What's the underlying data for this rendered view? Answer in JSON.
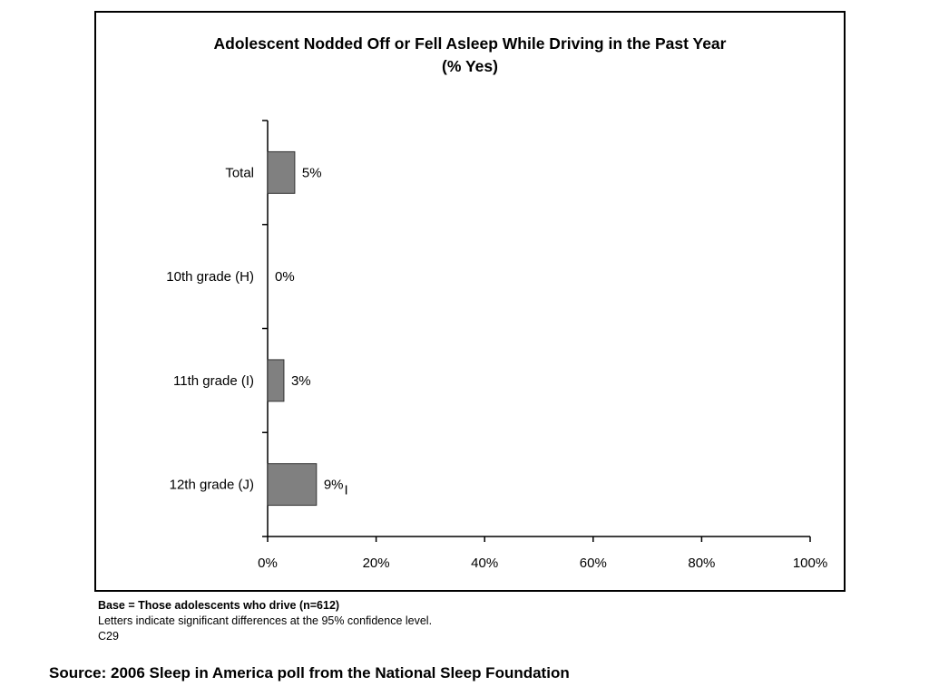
{
  "chart_data": {
    "type": "bar",
    "orientation": "horizontal",
    "title": "Adolescent Nodded Off or Fell Asleep While Driving in the Past Year",
    "subtitle": "(% Yes)",
    "categories": [
      "Total",
      "10th grade (H)",
      "11th grade (I)",
      "12th grade (J)"
    ],
    "values": [
      5,
      0,
      3,
      9
    ],
    "data_labels": [
      "5%",
      "0%",
      "3%",
      "9%"
    ],
    "significance_markers": [
      "",
      "",
      "",
      "I"
    ],
    "xlim": [
      0,
      100
    ],
    "x_ticks": [
      0,
      20,
      40,
      60,
      80,
      100
    ],
    "x_tick_labels": [
      "0%",
      "20%",
      "40%",
      "60%",
      "80%",
      "100%"
    ],
    "xlabel": "",
    "ylabel": "",
    "grid": false,
    "bar_color": "#808080"
  },
  "notes": {
    "base": "Base = Those adolescents who drive (n=612)",
    "letters": "Letters indicate significant differences at the 95% confidence level.",
    "code": "C29"
  },
  "source": "Source: 2006 Sleep in America poll from the National Sleep Foundation"
}
